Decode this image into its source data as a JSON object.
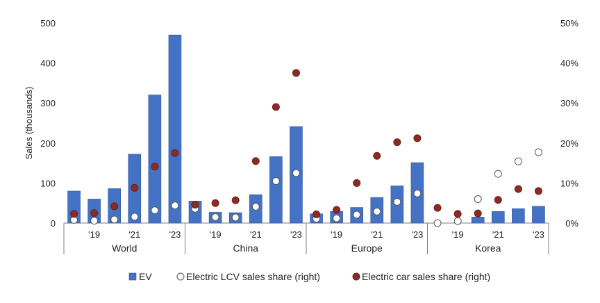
{
  "chart_data": {
    "type": "bar",
    "ylabel": "Sales (thousands)",
    "ylim": [
      0,
      500
    ],
    "y_ticks": [
      "0",
      "100",
      "200",
      "300",
      "400",
      "500"
    ],
    "y2lim": [
      0,
      50
    ],
    "y2_ticks": [
      "0%",
      "10%",
      "20%",
      "30%",
      "40%",
      "50%"
    ],
    "groups": [
      "World",
      "China",
      "Europe",
      "Korea"
    ],
    "categories": [
      "2018",
      "2019",
      "2020",
      "2021",
      "2022",
      "2023"
    ],
    "x_tick_labels": [
      "",
      "'19",
      "",
      "'21",
      "",
      "'23"
    ],
    "legend_position": "bottom",
    "series": [
      {
        "name": "EV",
        "kind": "bar",
        "axis": "left",
        "color": "#4472c4",
        "values": [
          [
            80,
            60,
            86,
            172,
            320,
            470
          ],
          [
            55,
            27,
            26,
            71,
            166,
            241
          ],
          [
            23,
            29,
            39,
            64,
            93,
            151
          ],
          [
            0,
            0,
            15,
            29,
            36,
            42
          ]
        ]
      },
      {
        "name": "Electric LCV sales share (right)",
        "kind": "scatter",
        "axis": "right",
        "color": "#ffffff",
        "values": [
          [
            0.8,
            0.6,
            0.9,
            1.6,
            3.2,
            4.4
          ],
          [
            3.6,
            1.5,
            1.4,
            4.1,
            10.5,
            12.5
          ],
          [
            1.1,
            1.2,
            2.1,
            2.9,
            5.3,
            7.4
          ],
          [
            0,
            0.5,
            6.0,
            12.3,
            15.4,
            17.7
          ]
        ]
      },
      {
        "name": "Electric car sales share (right)",
        "kind": "scatter",
        "axis": "right",
        "color": "#8b2b25",
        "values": [
          [
            2.3,
            2.5,
            4.2,
            8.8,
            14.1,
            17.5
          ],
          [
            4.6,
            5.0,
            5.7,
            15.5,
            29.0,
            37.5
          ],
          [
            2.2,
            3.3,
            10.0,
            16.8,
            20.2,
            21.2
          ],
          [
            3.8,
            2.3,
            2.4,
            5.8,
            8.5,
            8.0
          ]
        ]
      }
    ]
  }
}
